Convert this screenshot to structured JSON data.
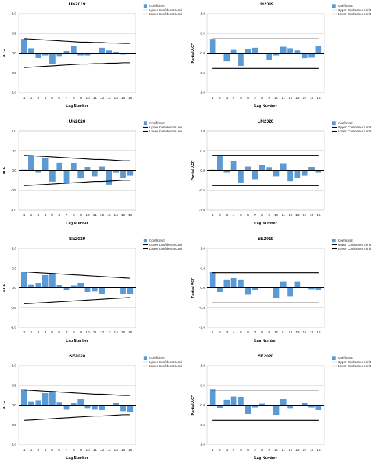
{
  "chart_data": [
    {
      "type": "bar",
      "title": "UN2019",
      "xlabel": "Lag Number",
      "ylabel": "ACF",
      "categories": [
        "1",
        "2",
        "3",
        "4",
        "5",
        "6",
        "7",
        "8",
        "9",
        "10",
        "11",
        "12",
        "13",
        "14",
        "15",
        "16"
      ],
      "ylim": [
        -1.0,
        1.0
      ],
      "yticks": [
        "1.0",
        "0.5",
        "0.0",
        "-0.5",
        "-1.0"
      ],
      "series": [
        {
          "name": "Coefficient",
          "values": [
            0.35,
            0.12,
            -0.12,
            -0.05,
            -0.28,
            -0.08,
            0.05,
            0.18,
            -0.05,
            -0.05,
            0.0,
            0.13,
            0.07,
            0.02,
            -0.03,
            0.0
          ]
        }
      ],
      "upper_limit": [
        0.36,
        0.35,
        0.34,
        0.33,
        0.32,
        0.31,
        0.3,
        0.29,
        0.28,
        0.28,
        0.27,
        0.27,
        0.26,
        0.26,
        0.25,
        0.25
      ],
      "lower_limit": [
        -0.36,
        -0.35,
        -0.34,
        -0.33,
        -0.32,
        -0.31,
        -0.3,
        -0.29,
        -0.28,
        -0.28,
        -0.27,
        -0.27,
        -0.26,
        -0.26,
        -0.25,
        -0.25
      ],
      "legend": [
        "Coefficient",
        "Upper Confidence Limit",
        "Lower Confidence Limit"
      ],
      "legend_position": "top-right"
    },
    {
      "type": "bar",
      "title": "UN2019",
      "xlabel": "Lag Number",
      "ylabel": "Partial ACF",
      "categories": [
        "1",
        "2",
        "3",
        "4",
        "5",
        "6",
        "7",
        "8",
        "9",
        "10",
        "11",
        "12",
        "13",
        "14",
        "15",
        "16"
      ],
      "ylim": [
        -1.0,
        1.0
      ],
      "yticks": [
        "1.0",
        "0.5",
        "0.0",
        "-0.5",
        "-1.0"
      ],
      "series": [
        {
          "name": "Coefficient",
          "values": [
            0.35,
            0.0,
            -0.2,
            0.08,
            -0.32,
            0.1,
            0.13,
            0.0,
            -0.17,
            -0.05,
            0.17,
            0.12,
            0.07,
            -0.13,
            -0.1,
            0.18
          ]
        }
      ],
      "upper_limit": [
        0.38,
        0.38,
        0.38,
        0.38,
        0.38,
        0.38,
        0.38,
        0.38,
        0.38,
        0.38,
        0.38,
        0.38,
        0.38,
        0.38,
        0.38,
        0.38
      ],
      "lower_limit": [
        -0.38,
        -0.38,
        -0.38,
        -0.38,
        -0.38,
        -0.38,
        -0.38,
        -0.38,
        -0.38,
        -0.38,
        -0.38,
        -0.38,
        -0.38,
        -0.38,
        -0.38,
        -0.38
      ],
      "legend": [
        "Coefficient",
        "Upper Confidence Limit",
        "Lower Confidence Limit"
      ],
      "legend_position": "top-right"
    },
    {
      "type": "bar",
      "title": "UN2020",
      "xlabel": "Lag Number",
      "ylabel": "ACF",
      "categories": [
        "1",
        "2",
        "3",
        "4",
        "5",
        "6",
        "7",
        "8",
        "9",
        "10",
        "11",
        "12",
        "13",
        "14",
        "15",
        "16"
      ],
      "ylim": [
        -1.0,
        1.0
      ],
      "yticks": [
        "1.0",
        "0.5",
        "0.0",
        "-0.5",
        "-1.0"
      ],
      "series": [
        {
          "name": "Coefficient",
          "values": [
            0.01,
            0.38,
            -0.05,
            0.32,
            -0.28,
            0.2,
            -0.32,
            0.18,
            -0.2,
            0.08,
            -0.15,
            0.1,
            -0.35,
            -0.05,
            -0.18,
            -0.12
          ]
        }
      ],
      "upper_limit": [
        0.38,
        0.37,
        0.36,
        0.35,
        0.34,
        0.33,
        0.32,
        0.31,
        0.3,
        0.29,
        0.28,
        0.28,
        0.27,
        0.26,
        0.25,
        0.25
      ],
      "lower_limit": [
        -0.38,
        -0.37,
        -0.36,
        -0.35,
        -0.34,
        -0.33,
        -0.32,
        -0.31,
        -0.3,
        -0.29,
        -0.28,
        -0.28,
        -0.27,
        -0.26,
        -0.25,
        -0.25
      ],
      "legend": [
        "Coefficient",
        "Upper Confidence Limit",
        "Lower Confidence Limit"
      ],
      "legend_position": "top-right"
    },
    {
      "type": "bar",
      "title": "UN2020",
      "xlabel": "Lag Number",
      "ylabel": "Partial ACF",
      "categories": [
        "1",
        "2",
        "3",
        "4",
        "5",
        "6",
        "7",
        "8",
        "9",
        "10",
        "11",
        "12",
        "13",
        "14",
        "15",
        "16"
      ],
      "ylim": [
        -1.0,
        1.0
      ],
      "yticks": [
        "1.0",
        "0.5",
        "0.0",
        "-0.5",
        "-1.0"
      ],
      "series": [
        {
          "name": "Coefficient",
          "values": [
            0.01,
            0.38,
            -0.05,
            0.24,
            -0.3,
            0.1,
            -0.22,
            0.13,
            0.07,
            -0.15,
            0.17,
            -0.27,
            -0.18,
            -0.12,
            0.08,
            -0.05
          ]
        }
      ],
      "upper_limit": [
        0.38,
        0.38,
        0.38,
        0.38,
        0.38,
        0.38,
        0.38,
        0.38,
        0.38,
        0.38,
        0.38,
        0.38,
        0.38,
        0.38,
        0.38,
        0.38
      ],
      "lower_limit": [
        -0.38,
        -0.38,
        -0.38,
        -0.38,
        -0.38,
        -0.38,
        -0.38,
        -0.38,
        -0.38,
        -0.38,
        -0.38,
        -0.38,
        -0.38,
        -0.38,
        -0.38,
        -0.38
      ],
      "legend": [
        "Coefficient",
        "Upper Confidence Limit",
        "Lower Confidence Limit"
      ],
      "legend_position": "top-right"
    },
    {
      "type": "bar",
      "title": "SE2019",
      "xlabel": "Lag Number",
      "ylabel": "ACF",
      "categories": [
        "1",
        "2",
        "3",
        "4",
        "5",
        "6",
        "7",
        "8",
        "9",
        "10",
        "11",
        "12",
        "13",
        "14",
        "15",
        "16"
      ],
      "ylim": [
        -1.0,
        1.0
      ],
      "yticks": [
        "1.0",
        "0.5",
        "0.0",
        "-0.5",
        "-1.0"
      ],
      "series": [
        {
          "name": "Coefficient",
          "values": [
            0.4,
            0.08,
            0.12,
            0.32,
            0.37,
            0.07,
            -0.05,
            0.05,
            0.12,
            -0.1,
            -0.08,
            -0.15,
            0.0,
            0.0,
            -0.15,
            -0.15
          ]
        }
      ],
      "upper_limit": [
        0.4,
        0.39,
        0.38,
        0.37,
        0.36,
        0.35,
        0.34,
        0.33,
        0.32,
        0.31,
        0.3,
        0.29,
        0.28,
        0.27,
        0.26,
        0.25
      ],
      "lower_limit": [
        -0.4,
        -0.39,
        -0.38,
        -0.37,
        -0.36,
        -0.35,
        -0.34,
        -0.33,
        -0.32,
        -0.31,
        -0.3,
        -0.29,
        -0.28,
        -0.27,
        -0.26,
        -0.25
      ],
      "legend": [
        "Coefficient",
        "Upper Confidence Limit",
        "Lower Confidence Limit"
      ],
      "legend_position": "top-right"
    },
    {
      "type": "bar",
      "title": "SE2019",
      "xlabel": "Lag Number",
      "ylabel": "Partial ACF",
      "categories": [
        "1",
        "2",
        "3",
        "4",
        "5",
        "6",
        "7",
        "8",
        "9",
        "10",
        "11",
        "12",
        "13",
        "14",
        "15",
        "16"
      ],
      "ylim": [
        -1.0,
        1.0
      ],
      "yticks": [
        "1.0",
        "0.5",
        "0.0",
        "-0.5",
        "-1.0"
      ],
      "series": [
        {
          "name": "Coefficient",
          "values": [
            0.4,
            -0.1,
            0.2,
            0.25,
            0.2,
            -0.17,
            -0.05,
            0.0,
            0.0,
            -0.25,
            0.15,
            -0.22,
            0.15,
            0.0,
            -0.03,
            -0.05
          ]
        }
      ],
      "upper_limit": [
        0.38,
        0.38,
        0.38,
        0.38,
        0.38,
        0.38,
        0.38,
        0.38,
        0.38,
        0.38,
        0.38,
        0.38,
        0.38,
        0.38,
        0.38,
        0.38
      ],
      "lower_limit": [
        -0.38,
        -0.38,
        -0.38,
        -0.38,
        -0.38,
        -0.38,
        -0.38,
        -0.38,
        -0.38,
        -0.38,
        -0.38,
        -0.38,
        -0.38,
        -0.38,
        -0.38,
        -0.38
      ],
      "legend": [
        "Coefficient",
        "Upper Confidence Limit",
        "Lower Confidence Limit"
      ],
      "legend_position": "top-right"
    },
    {
      "type": "bar",
      "title": "SE2020",
      "xlabel": "Lag Number",
      "ylabel": "ACF",
      "categories": [
        "1",
        "2",
        "3",
        "4",
        "5",
        "6",
        "7",
        "8",
        "9",
        "10",
        "11",
        "12",
        "13",
        "14",
        "15",
        "16"
      ],
      "ylim": [
        -1.0,
        1.0
      ],
      "yticks": [
        "1.0",
        "0.5",
        "0.0",
        "-0.5",
        "-1.0"
      ],
      "series": [
        {
          "name": "Coefficient",
          "values": [
            0.4,
            0.08,
            0.12,
            0.3,
            0.35,
            0.07,
            -0.1,
            0.05,
            0.15,
            -0.08,
            -0.1,
            -0.12,
            0.0,
            0.05,
            -0.15,
            -0.18
          ]
        }
      ],
      "upper_limit": [
        0.38,
        0.37,
        0.36,
        0.35,
        0.34,
        0.33,
        0.32,
        0.31,
        0.3,
        0.29,
        0.28,
        0.28,
        0.27,
        0.26,
        0.25,
        0.25
      ],
      "lower_limit": [
        -0.38,
        -0.37,
        -0.36,
        -0.35,
        -0.34,
        -0.33,
        -0.32,
        -0.31,
        -0.3,
        -0.29,
        -0.28,
        -0.28,
        -0.27,
        -0.26,
        -0.25,
        -0.25
      ],
      "legend": [
        "Coefficient",
        "Upper Confidence Limit",
        "Lower Confidence Limit"
      ],
      "legend_position": "top-right"
    },
    {
      "type": "bar",
      "title": "SE2020",
      "xlabel": "Lag Number",
      "ylabel": "Partial ACF",
      "categories": [
        "1",
        "2",
        "3",
        "4",
        "5",
        "6",
        "7",
        "8",
        "9",
        "10",
        "11",
        "12",
        "13",
        "14",
        "15",
        "16"
      ],
      "ylim": [
        -1.0,
        1.0
      ],
      "yticks": [
        "1.0",
        "0.5",
        "0.0",
        "-0.5",
        "-1.0"
      ],
      "series": [
        {
          "name": "Coefficient",
          "values": [
            0.4,
            -0.07,
            0.13,
            0.22,
            0.2,
            -0.22,
            -0.05,
            0.03,
            0.0,
            -0.25,
            0.15,
            -0.08,
            0.0,
            0.05,
            -0.05,
            -0.12
          ]
        }
      ],
      "upper_limit": [
        0.38,
        0.38,
        0.38,
        0.38,
        0.38,
        0.38,
        0.38,
        0.38,
        0.38,
        0.38,
        0.38,
        0.38,
        0.38,
        0.38,
        0.38,
        0.38
      ],
      "lower_limit": [
        -0.38,
        -0.38,
        -0.38,
        -0.38,
        -0.38,
        -0.38,
        -0.38,
        -0.38,
        -0.38,
        -0.38,
        -0.38,
        -0.38,
        -0.38,
        -0.38,
        -0.38,
        -0.38
      ],
      "legend": [
        "Coefficient",
        "Upper Confidence Limit",
        "Lower Confidence Limit"
      ],
      "legend_position": "top-right"
    }
  ],
  "colors": {
    "bar": "#5b9bd5",
    "bar_stroke": "#3f7fbf",
    "limit_line": "#000000",
    "axis_grid": "#c8c8c8"
  }
}
